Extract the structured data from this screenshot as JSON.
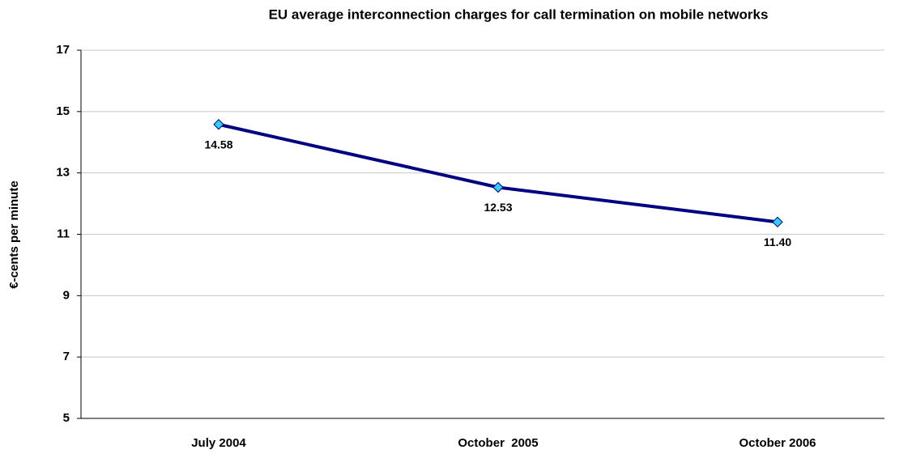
{
  "chart_data": {
    "type": "line",
    "title": "EU average interconnection charges for call termination on mobile networks",
    "ylabel": "€-cents per minute",
    "categories": [
      "July 2004",
      "October  2005",
      "October 2006"
    ],
    "series": [
      {
        "name": null,
        "color": "#000080",
        "marker_color": "#33ccff",
        "values": [
          14.58,
          12.53,
          11.4
        ],
        "value_labels": [
          "14.58",
          "12.53",
          "11.40"
        ]
      }
    ],
    "ylim": [
      5,
      17
    ],
    "yticks": [
      5,
      7,
      9,
      11,
      13,
      15,
      17
    ],
    "grid": true
  }
}
